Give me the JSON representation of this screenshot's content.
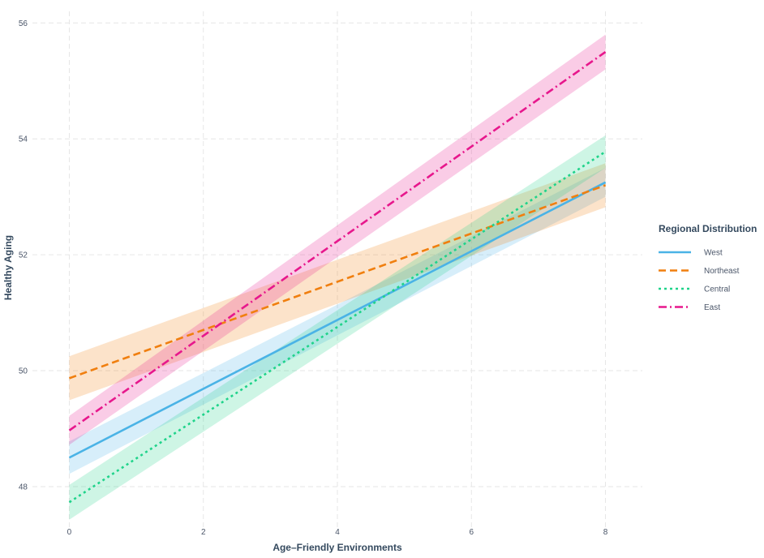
{
  "chart_data": {
    "type": "line",
    "xlabel": "Age–Friendly Environments",
    "ylabel": "Healthy Aging",
    "xlim": [
      -0.55,
      8.55
    ],
    "ylim": [
      47.3,
      56.2
    ],
    "xticks": [
      0,
      2,
      4,
      6,
      8
    ],
    "yticks": [
      48,
      50,
      52,
      54,
      56
    ],
    "grid": true,
    "legend": {
      "title": "Regional Distribution",
      "position": "right"
    },
    "series": [
      {
        "name": "West",
        "color": "#4ab3e6",
        "dash": "solid",
        "x": [
          0,
          8
        ],
        "y": [
          48.5,
          53.25
        ],
        "band_halfwidth": [
          0.28,
          0.25
        ]
      },
      {
        "name": "Northeast",
        "color": "#f07f0f",
        "dash": "dashed",
        "x": [
          0,
          8
        ],
        "y": [
          49.87,
          53.2
        ],
        "band_halfwidth": [
          0.38,
          0.38
        ]
      },
      {
        "name": "Central",
        "color": "#1fd38a",
        "dash": "dotted",
        "x": [
          0,
          8
        ],
        "y": [
          47.73,
          53.78
        ],
        "band_halfwidth": [
          0.3,
          0.28
        ]
      },
      {
        "name": "East",
        "color": "#e7178c",
        "dash": "dashdot",
        "x": [
          0,
          8
        ],
        "y": [
          48.97,
          55.5
        ],
        "band_halfwidth": [
          0.25,
          0.3
        ]
      }
    ]
  }
}
